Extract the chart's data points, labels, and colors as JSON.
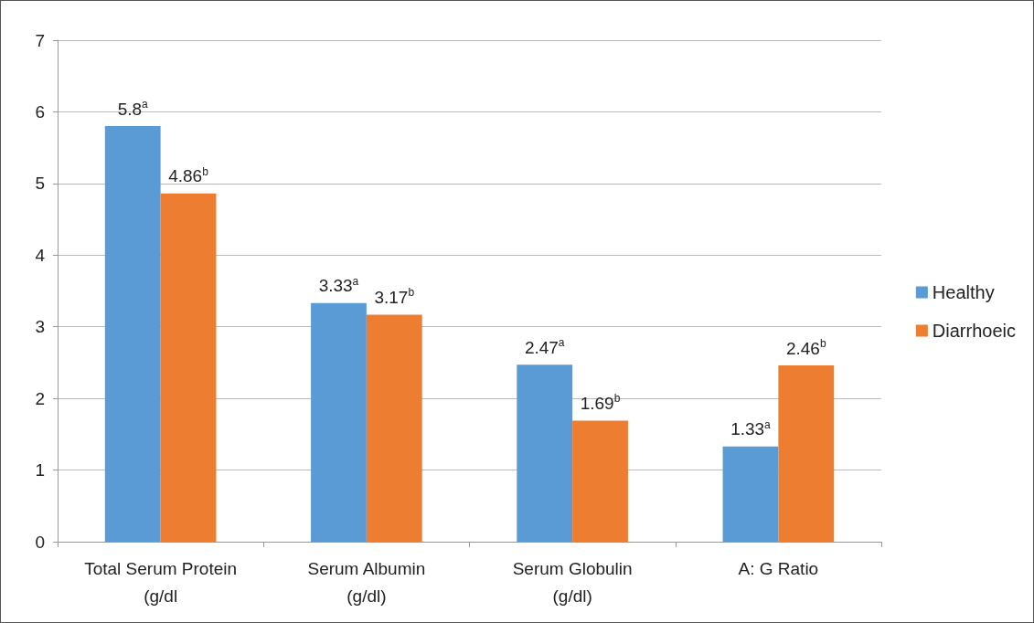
{
  "chart_data": {
    "type": "bar",
    "categories": [
      "Total Serum Protein\n(g/dl",
      "Serum Albumin\n(g/dl)",
      "Serum Globulin\n(g/dl)",
      "A: G Ratio"
    ],
    "series": [
      {
        "name": "Healthy",
        "color": "#5b9bd5",
        "values": [
          5.8,
          3.33,
          2.47,
          1.33
        ],
        "value_labels": [
          "5.8$^{a}$",
          "3.33$^{a}$",
          "2.47$^{a}$",
          "1.33$^{a}$"
        ]
      },
      {
        "name": "Diarrhoeic",
        "color": "#ed7d31",
        "values": [
          4.86,
          3.17,
          1.69,
          2.46
        ],
        "value_labels": [
          "4.86$^{b}$",
          "3.17$^{b}$",
          "1.69$^{b}$",
          "2.46$^{b}$"
        ]
      }
    ],
    "ylim": [
      0,
      7
    ],
    "yticks": [
      0,
      1,
      2,
      3,
      4,
      5,
      6,
      7
    ],
    "grid": "y",
    "legend": "right"
  }
}
